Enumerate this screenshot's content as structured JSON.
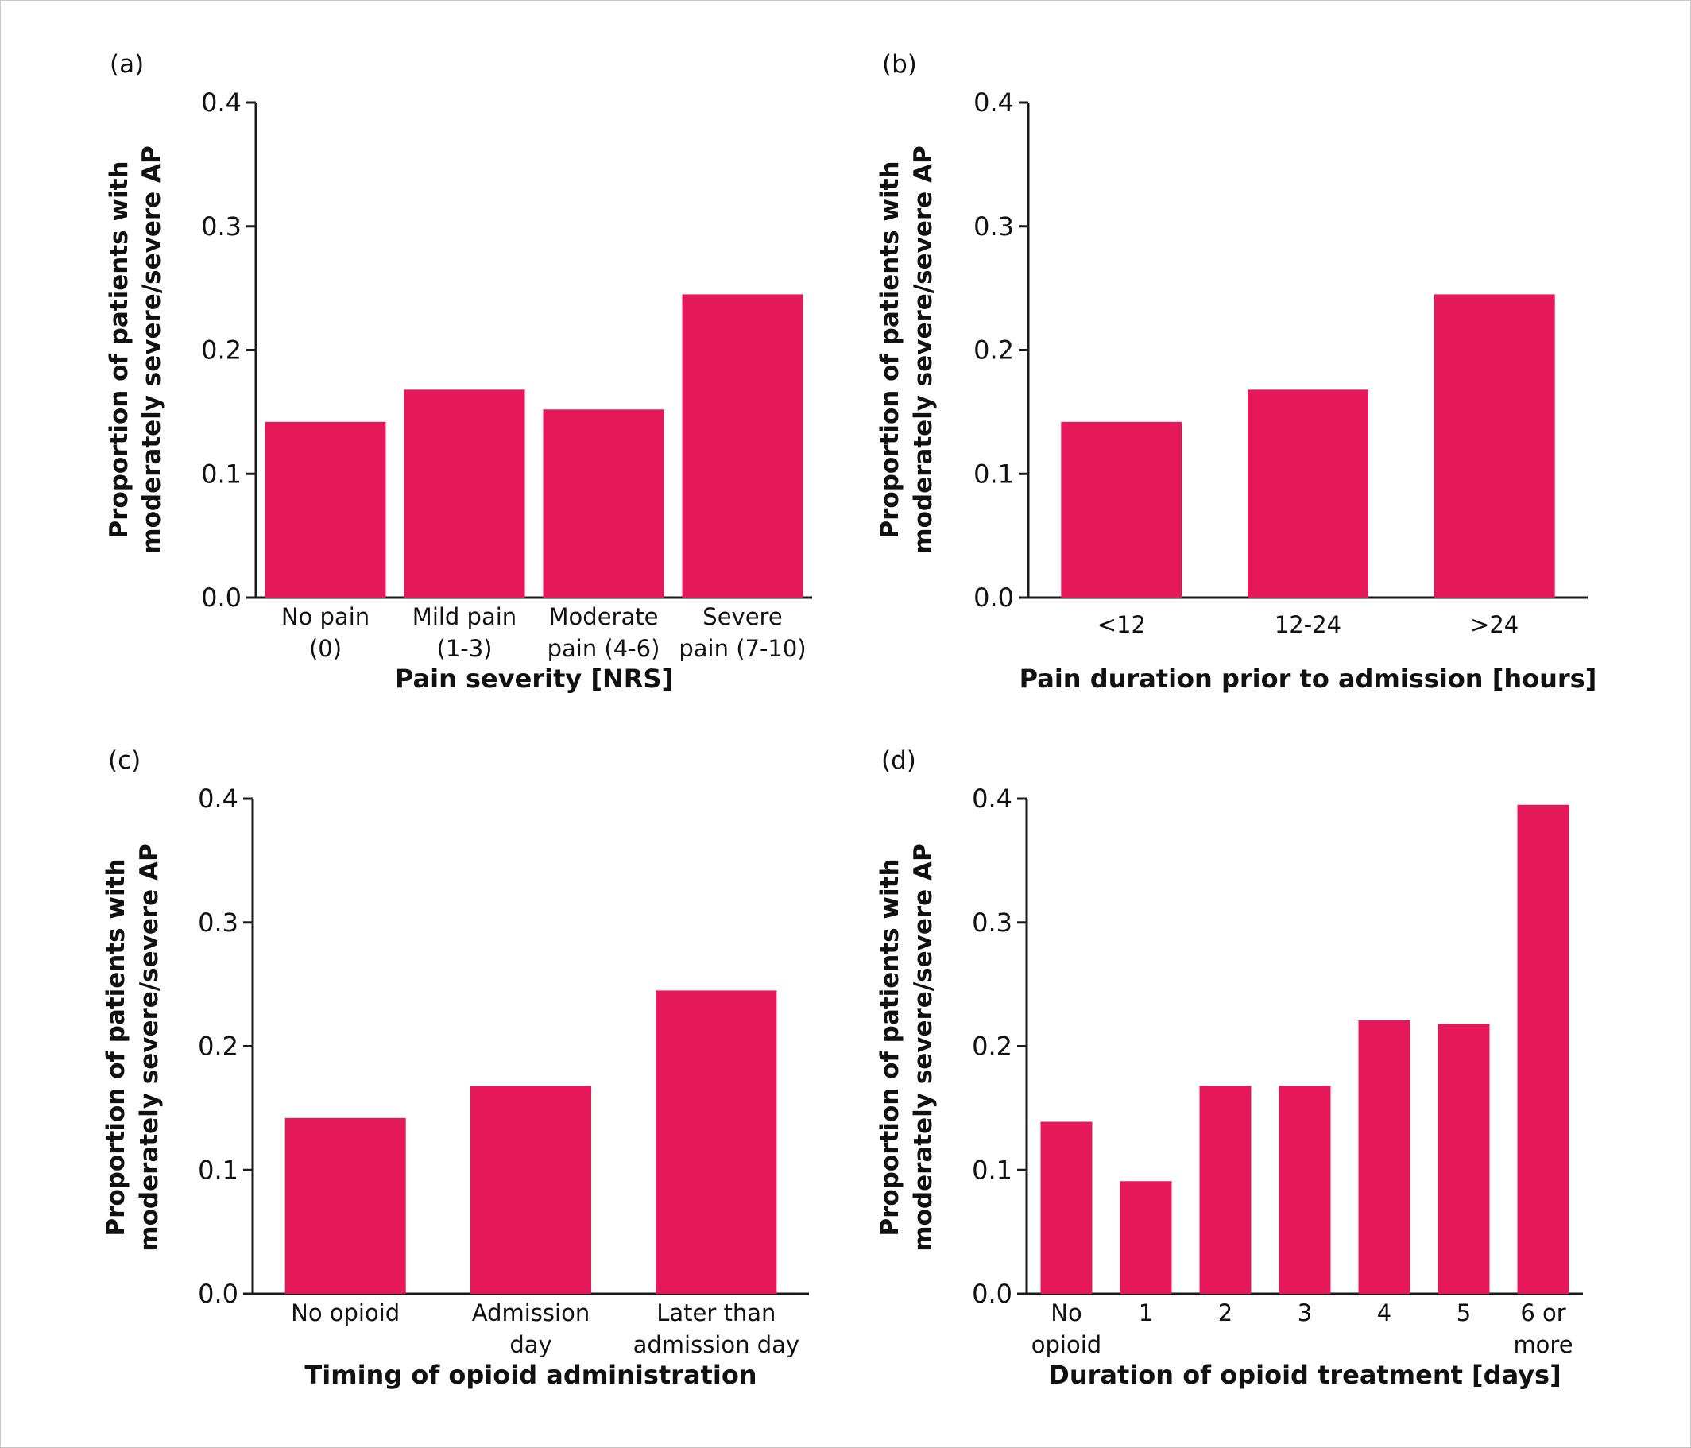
{
  "figure": {
    "bar_color": "#E5185A",
    "axis_color": "#1a1a1a",
    "text_color": "#111111"
  },
  "chart_data": [
    {
      "panel_label": "(a)",
      "type": "bar",
      "categories": [
        "No pain (0)",
        "Mild pain (1-3)",
        "Moderate pain (4-6)",
        "Severe pain (7-10)"
      ],
      "category_lines": [
        [
          "No pain",
          "(0)"
        ],
        [
          "Mild pain",
          "(1-3)"
        ],
        [
          "Moderate",
          "pain (4-6)"
        ],
        [
          "Severe",
          "pain (7-10)"
        ]
      ],
      "values": [
        0.142,
        0.168,
        0.152,
        0.245
      ],
      "xlabel": "Pain severity [NRS]",
      "ylabel_lines": [
        "Proportion of patients with",
        "moderately severe/severe AP"
      ],
      "ylim": [
        0.0,
        0.4
      ],
      "yticks": [
        "0.0",
        "0.1",
        "0.2",
        "0.3",
        "0.4"
      ],
      "grid": false
    },
    {
      "panel_label": "(b)",
      "type": "bar",
      "categories": [
        "<12",
        "12-24",
        ">24"
      ],
      "category_lines": [
        [
          "<12"
        ],
        [
          "12-24"
        ],
        [
          ">24"
        ]
      ],
      "values": [
        0.142,
        0.168,
        0.245
      ],
      "xlabel": "Pain duration prior to admission [hours]",
      "ylabel_lines": [
        "Proportion of patients with",
        "moderately severe/severe AP"
      ],
      "ylim": [
        0.0,
        0.4
      ],
      "yticks": [
        "0.0",
        "0.1",
        "0.2",
        "0.3",
        "0.4"
      ],
      "grid": false
    },
    {
      "panel_label": "(c)",
      "type": "bar",
      "categories": [
        "No opioid",
        "Admission day",
        "Later than admission day"
      ],
      "category_lines": [
        [
          "No opioid"
        ],
        [
          "Admission",
          "day"
        ],
        [
          "Later than",
          "admission day"
        ]
      ],
      "values": [
        0.142,
        0.168,
        0.245
      ],
      "xlabel": "Timing of opioid administration",
      "ylabel_lines": [
        "Proportion of patients with",
        "moderately severe/severe AP"
      ],
      "ylim": [
        0.0,
        0.4
      ],
      "yticks": [
        "0.0",
        "0.1",
        "0.2",
        "0.3",
        "0.4"
      ],
      "grid": false
    },
    {
      "panel_label": "(d)",
      "type": "bar",
      "categories": [
        "No opioid",
        "1",
        "2",
        "3",
        "4",
        "5",
        "6 or more"
      ],
      "category_lines": [
        [
          "No",
          "opioid"
        ],
        [
          "1"
        ],
        [
          "2"
        ],
        [
          "3"
        ],
        [
          "4"
        ],
        [
          "5"
        ],
        [
          "6 or",
          "more"
        ]
      ],
      "values": [
        0.139,
        0.091,
        0.168,
        0.168,
        0.221,
        0.218,
        0.395
      ],
      "xlabel": "Duration of opioid treatment [days]",
      "ylabel_lines": [
        "Proportion of patients with",
        "moderately severe/severe AP"
      ],
      "ylim": [
        0.0,
        0.4
      ],
      "yticks": [
        "0.0",
        "0.1",
        "0.2",
        "0.3",
        "0.4"
      ],
      "grid": false
    }
  ]
}
